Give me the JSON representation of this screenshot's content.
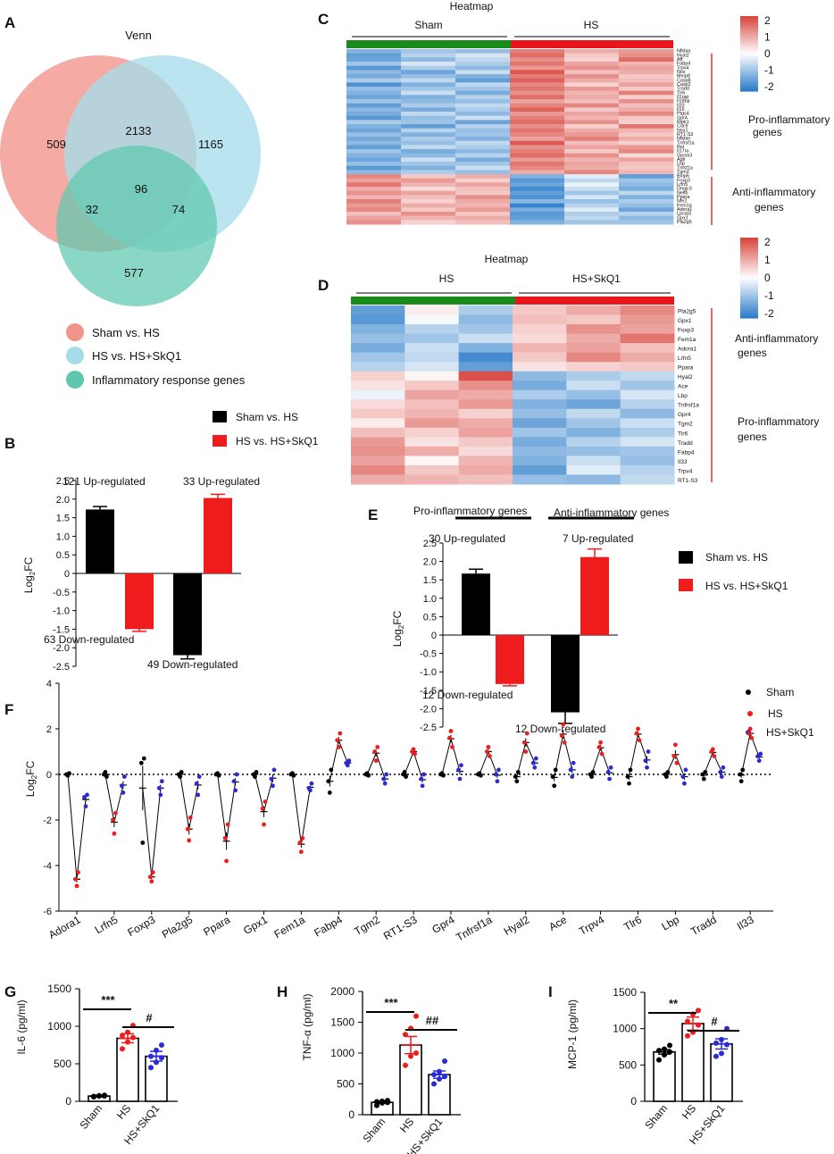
{
  "colors": {
    "sham": "#000000",
    "hs": "#ee1c1c",
    "skq": "#2b2bd6",
    "venn_sham": "#f2948a",
    "venn_hs": "#a6dcea",
    "venn_inf": "#5ec7ae",
    "heat_hi": "#d9473f",
    "heat_lo": "#2f7fca",
    "bar_green": "#1a8a1a",
    "bar_red": "#e8161b"
  },
  "panel_letters": {
    "A": "A",
    "B": "B",
    "C": "C",
    "D": "D",
    "E": "E",
    "F": "F",
    "G": "G",
    "H": "H",
    "I": "I"
  },
  "chart_data": [
    {
      "panel": "A",
      "type": "venn",
      "title": "Venn",
      "regions": {
        "sham_only": "509",
        "sham_hs": "2133",
        "hs_only": "1165",
        "center": "96",
        "sham_inf": "32",
        "hs_inf": "74",
        "inf_only": "577"
      },
      "legend": [
        "Sham vs. HS",
        "HS vs. HS+SkQ1",
        "Inflammatory response genes"
      ]
    },
    {
      "panel": "B",
      "type": "bar",
      "ylabel_main": "Log",
      "ylabel_sub": "2",
      "ylabel_tail": "FC",
      "ylim": [
        -2.5,
        2.5
      ],
      "yticks": [
        "2.5",
        "2.0",
        "1.5",
        "1.0",
        "0.5",
        "0",
        "-0.5",
        "-1.0",
        "-1.5",
        "-2.0",
        "-2.5"
      ],
      "legend": [
        "Sham vs. HS",
        "HS vs. HS+SkQ1"
      ],
      "bars": [
        {
          "series": "Sham vs. HS",
          "value": 1.72,
          "err": 0.08
        },
        {
          "series": "HS vs. HS+SkQ1",
          "value": -1.5,
          "err": 0.06
        },
        {
          "series": "Sham vs. HS",
          "value": -2.2,
          "err": 0.1
        },
        {
          "series": "HS vs. HS+SkQ1",
          "value": 2.03,
          "err": 0.1
        }
      ],
      "annotations": [
        "121 Up-regulated",
        "33 Up-regulated",
        "63 Down-regulated",
        "49 Down-regulated"
      ]
    },
    {
      "panel": "C",
      "type": "heatmap",
      "title": "Heatmap",
      "groups": [
        "Sham",
        "HS"
      ],
      "scale": [
        "2",
        "1",
        "0",
        "-1",
        "-2"
      ],
      "right_labels": [
        "Pro-inflammatory",
        "genes",
        "Anti-inflammatory",
        "genes"
      ],
      "rows": [
        "Nfkbia",
        "Hyal2",
        "Atf",
        "Fabp4",
        "Trpv4",
        "Nos",
        "Mmp8",
        "Casp8",
        "Casp2",
        "Tradd",
        "Tlr6",
        "Il1rap",
        "Il18bp",
        "Il33",
        "Il16",
        "Ptgs4",
        "Gpr4",
        "Ripk1",
        "Cdc9",
        "Nox1",
        "RT1-S3",
        "Nfkbie",
        "Tnfrsf1a",
        "Rel",
        "Il17ra",
        "Gpsm3",
        "Agtr",
        "Lbp",
        "Tnfsf1a",
        "Tgm2",
        "Bmp6",
        "Foxp3",
        "Lrfn5",
        "Dnajc3",
        "Nelfb",
        "Ppara",
        "Nfe2",
        "Fem1a",
        "Adora1",
        "Lpcat3",
        "Gpx1",
        "Pla2g5"
      ],
      "values": [
        [
          -1.2,
          -0.9,
          -1.0,
          1.4,
          0.9,
          1.1
        ],
        [
          -1.5,
          -0.7,
          -0.4,
          1.6,
          0.6,
          1.2
        ],
        [
          -1.4,
          -1.1,
          -0.6,
          1.2,
          0.5,
          1.6
        ],
        [
          -0.9,
          -0.4,
          -0.8,
          1.5,
          1.0,
          0.8
        ],
        [
          -1.6,
          -0.8,
          -1.1,
          1.1,
          1.2,
          1.0
        ],
        [
          -1.1,
          -1.4,
          -0.5,
          1.8,
          0.7,
          0.9
        ],
        [
          -1.3,
          -1.0,
          -1.2,
          1.4,
          1.2,
          0.6
        ],
        [
          -0.8,
          -0.6,
          -1.5,
          1.7,
          0.9,
          0.7
        ],
        [
          -1.7,
          -1.2,
          -0.6,
          1.3,
          0.5,
          1.0
        ],
        [
          -1.0,
          -0.9,
          -0.9,
          1.5,
          1.1,
          0.6
        ],
        [
          -1.2,
          -0.5,
          -1.3,
          1.2,
          0.8,
          1.4
        ],
        [
          -1.4,
          -1.2,
          -0.7,
          1.6,
          0.9,
          0.5
        ],
        [
          -0.9,
          -1.1,
          -1.0,
          1.0,
          0.7,
          1.2
        ],
        [
          -1.5,
          -0.8,
          -0.6,
          1.3,
          1.3,
          0.7
        ],
        [
          -1.1,
          -1.3,
          -0.8,
          1.7,
          0.6,
          0.9
        ],
        [
          -1.3,
          -0.6,
          -1.1,
          1.1,
          1.0,
          1.3
        ],
        [
          -1.6,
          -1.0,
          -0.5,
          1.4,
          0.8,
          0.6
        ],
        [
          -0.8,
          -0.9,
          -1.4,
          1.6,
          1.2,
          0.5
        ],
        [
          -1.2,
          -1.5,
          -0.7,
          1.2,
          0.5,
          1.5
        ],
        [
          -1.4,
          -0.7,
          -1.0,
          1.5,
          0.9,
          0.8
        ],
        [
          -1.0,
          -1.2,
          -0.9,
          1.3,
          1.1,
          0.6
        ],
        [
          -1.3,
          -0.8,
          -1.2,
          1.0,
          1.4,
          0.9
        ],
        [
          -1.1,
          -1.0,
          -0.6,
          1.8,
          0.7,
          0.5
        ],
        [
          -1.5,
          -0.6,
          -0.8,
          1.2,
          1.0,
          1.1
        ],
        [
          -0.9,
          -1.3,
          -1.1,
          1.4,
          0.6,
          1.3
        ],
        [
          -1.2,
          -1.1,
          -0.7,
          1.6,
          1.2,
          0.4
        ],
        [
          -1.4,
          -0.5,
          -1.3,
          1.1,
          0.8,
          1.0
        ],
        [
          -1.0,
          -0.9,
          -0.9,
          1.5,
          1.0,
          0.7
        ],
        [
          -1.6,
          -1.2,
          -0.5,
          1.3,
          0.9,
          0.6
        ],
        [
          -1.1,
          -0.8,
          -1.0,
          0.9,
          1.3,
          0.8
        ],
        [
          1.3,
          0.6,
          0.9,
          -1.2,
          -0.3,
          -1.5
        ],
        [
          1.0,
          1.1,
          0.5,
          -1.6,
          -0.6,
          -0.9
        ],
        [
          1.5,
          0.8,
          1.0,
          -1.4,
          -0.2,
          -1.1
        ],
        [
          0.9,
          0.4,
          0.7,
          -1.8,
          -0.5,
          -1.3
        ],
        [
          1.2,
          1.0,
          0.6,
          -1.5,
          -0.9,
          -0.6
        ],
        [
          0.8,
          0.7,
          1.2,
          -1.7,
          -0.4,
          -1.2
        ],
        [
          1.4,
          0.5,
          0.9,
          -1.1,
          -1.0,
          -0.8
        ],
        [
          1.1,
          0.9,
          0.8,
          -1.9,
          -0.7,
          -1.0
        ],
        [
          1.3,
          0.6,
          1.1,
          -1.3,
          -0.3,
          -1.4
        ],
        [
          0.7,
          1.2,
          0.6,
          -1.6,
          -0.8,
          -0.7
        ],
        [
          1.0,
          0.8,
          0.9,
          -1.5,
          -0.6,
          -1.1
        ],
        [
          1.2,
          0.5,
          0.7,
          -1.2,
          -0.9,
          -0.9
        ]
      ]
    },
    {
      "panel": "D",
      "type": "heatmap",
      "title": "Heatmap",
      "groups": [
        "HS",
        "HS+SkQ1"
      ],
      "scale": [
        "2",
        "1",
        "0",
        "-1",
        "-2"
      ],
      "right_labels": [
        "Anti-inflammatory",
        "genes",
        "Pro-inflammatory",
        "genes"
      ],
      "rows": [
        "Pla2g5",
        "Gpx1",
        "Foxp3",
        "Fem1a",
        "Adora1",
        "Lrfn5",
        "Ppara",
        "Hyal2",
        "Ace",
        "Lbp",
        "Tnfrsf1a",
        "Gpr4",
        "Tgm2",
        "Tlr6",
        "Tradd",
        "Fabp4",
        "Il33",
        "Trpv4",
        "RT1-S3"
      ],
      "values": [
        [
          -1.5,
          0.2,
          -0.8,
          0.6,
          0.9,
          1.3
        ],
        [
          -1.6,
          -0.1,
          -1.1,
          0.7,
          0.6,
          1.1
        ],
        [
          -1.2,
          -0.7,
          -0.9,
          0.5,
          1.2,
          1.0
        ],
        [
          -1.0,
          -0.9,
          -0.5,
          0.4,
          0.9,
          1.5
        ],
        [
          -1.3,
          -0.5,
          -1.2,
          0.8,
          1.0,
          0.7
        ],
        [
          -0.9,
          -0.6,
          -1.8,
          0.6,
          1.3,
          0.9
        ],
        [
          -0.7,
          -0.4,
          -1.5,
          0.3,
          0.5,
          0.6
        ],
        [
          0.5,
          0.1,
          1.9,
          -1.1,
          -0.8,
          -0.6
        ],
        [
          0.3,
          0.6,
          1.2,
          -1.3,
          -0.5,
          -0.9
        ],
        [
          -0.2,
          1.0,
          0.9,
          -0.8,
          -1.0,
          -0.4
        ],
        [
          0.4,
          0.7,
          1.1,
          -1.2,
          -1.4,
          -0.7
        ],
        [
          0.6,
          0.8,
          0.5,
          -1.0,
          -0.6,
          -1.1
        ],
        [
          0.2,
          1.1,
          0.9,
          -1.4,
          -0.9,
          -0.5
        ],
        [
          0.7,
          0.5,
          1.0,
          -0.9,
          -1.2,
          -0.8
        ],
        [
          1.1,
          0.3,
          0.6,
          -1.3,
          -0.7,
          -0.4
        ],
        [
          1.2,
          0.9,
          0.4,
          -1.1,
          -1.0,
          -0.9
        ],
        [
          1.0,
          0.1,
          0.8,
          -1.2,
          -0.5,
          -1.0
        ],
        [
          1.3,
          0.6,
          0.9,
          -1.5,
          -0.3,
          -0.7
        ],
        [
          0.9,
          0.8,
          0.7,
          -1.0,
          -1.1,
          -0.6
        ]
      ]
    },
    {
      "panel": "E",
      "type": "bar",
      "ylabel_main": "Log",
      "ylabel_sub": "2",
      "ylabel_tail": "FC",
      "ylim": [
        -2.5,
        2.5
      ],
      "yticks": [
        "2.5",
        "2.0",
        "1.5",
        "1.0",
        "0.5",
        "0",
        "-0.5",
        "-1.0",
        "-1.5",
        "-2.0",
        "-2.5"
      ],
      "legend": [
        "Sham vs. HS",
        "HS vs. HS+SkQ1"
      ],
      "group_labels": [
        "Pro-inflammatory genes",
        "Anti-inflammatory genes"
      ],
      "bars": [
        {
          "series": "Sham vs. HS",
          "value": 1.67,
          "err": 0.12
        },
        {
          "series": "HS vs. HS+SkQ1",
          "value": -1.33,
          "err": 0.05
        },
        {
          "series": "Sham vs. HS",
          "value": -2.1,
          "err": 0.3
        },
        {
          "series": "HS vs. HS+SkQ1",
          "value": 2.12,
          "err": 0.22
        }
      ],
      "annotations": [
        "30 Up-regulated",
        "7 Up-regulated",
        "12 Down-regulated",
        "12 Down-regulated"
      ]
    },
    {
      "panel": "F",
      "type": "scatter",
      "ylabel_main": "Log",
      "ylabel_sub": "2",
      "ylabel_tail": "FC",
      "ylim": [
        -6,
        4
      ],
      "yticks": [
        "4",
        "2",
        "0",
        "-2",
        "-4",
        "-6"
      ],
      "legend": [
        "Sham",
        "HS",
        "HS+SkQ1"
      ],
      "genes": [
        "Adora1",
        "Lrfn5",
        "Foxp3",
        "Pla2g5",
        "Ppara",
        "Gpx1",
        "Fem1a",
        "Fabp4",
        "Tgm2",
        "RT1-S3",
        "Gpr4",
        "Tnfrsf1a",
        "Hyal2",
        "Ace",
        "Trpv4",
        "Tlr6",
        "Lbp",
        "Tradd",
        "Il33"
      ],
      "points": [
        [
          [
            0,
            -0.05,
            0.05
          ],
          [
            -4.6,
            -4.9,
            -4.3
          ],
          [
            -1.0,
            -1.4,
            -0.9
          ]
        ],
        [
          [
            0,
            0.1,
            -0.1
          ],
          [
            -2.0,
            -2.6,
            -1.7
          ],
          [
            -0.5,
            -0.8,
            -0.1
          ]
        ],
        [
          [
            0.5,
            -3.0,
            0.7
          ],
          [
            -4.5,
            -4.7,
            -4.3
          ],
          [
            -0.6,
            -0.9,
            -0.3
          ]
        ],
        [
          [
            0,
            -0.1,
            0.1
          ],
          [
            -2.4,
            -2.9,
            -1.9
          ],
          [
            -0.4,
            -0.9,
            -0.1
          ]
        ],
        [
          [
            0,
            0.05,
            -0.05
          ],
          [
            -2.8,
            -3.8,
            -2.2
          ],
          [
            -0.3,
            -0.7,
            0
          ]
        ],
        [
          [
            0,
            -0.1,
            0.1
          ],
          [
            -1.5,
            -2.2,
            -1.2
          ],
          [
            -0.2,
            -0.5,
            0.2
          ]
        ],
        [
          [
            0,
            0.05,
            -0.05
          ],
          [
            -3.0,
            -3.4,
            -2.8
          ],
          [
            -0.6,
            -0.7,
            -0.4
          ]
        ],
        [
          [
            -0.3,
            -0.8,
            0.2
          ],
          [
            1.5,
            1.2,
            1.8
          ],
          [
            0.5,
            0.4,
            0.6
          ]
        ],
        [
          [
            0,
            0.05,
            -0.05
          ],
          [
            1.0,
            0.6,
            1.2
          ],
          [
            -0.2,
            -0.4,
            0
          ]
        ],
        [
          [
            0,
            0.1,
            -0.1
          ],
          [
            1.0,
            1.1,
            0.9
          ],
          [
            -0.2,
            -0.5,
            0
          ]
        ],
        [
          [
            0,
            0.05,
            -0.05
          ],
          [
            1.6,
            1.9,
            1.2
          ],
          [
            0.2,
            -0.2,
            0.4
          ]
        ],
        [
          [
            0,
            0.05,
            -0.05
          ],
          [
            1.0,
            1.2,
            0.8
          ],
          [
            0,
            -0.3,
            0.2
          ]
        ],
        [
          [
            -0.1,
            -0.3,
            0.1
          ],
          [
            1.4,
            1.0,
            1.8
          ],
          [
            0.5,
            0.3,
            0.7
          ]
        ],
        [
          [
            -0.1,
            -0.5,
            0.2
          ],
          [
            1.7,
            2.2,
            1.4
          ],
          [
            0.2,
            -0.1,
            0.5
          ]
        ],
        [
          [
            0,
            -0.1,
            0.1
          ],
          [
            1.2,
            1.4,
            0.9
          ],
          [
            0.1,
            -0.2,
            0.3
          ]
        ],
        [
          [
            -0.1,
            -0.4,
            0.2
          ],
          [
            1.8,
            2.0,
            1.5
          ],
          [
            0.6,
            0.3,
            1.0
          ]
        ],
        [
          [
            0,
            -0.1,
            0.1
          ],
          [
            0.8,
            1.3,
            0.5
          ],
          [
            -0.1,
            -0.4,
            0.2
          ]
        ],
        [
          [
            0,
            -0.2,
            0.1
          ],
          [
            1.0,
            1.1,
            0.8
          ],
          [
            0.1,
            -0.1,
            0.3
          ]
        ],
        [
          [
            0,
            -0.3,
            0.2
          ],
          [
            1.8,
            2.0,
            1.6
          ],
          [
            0.8,
            0.6,
            0.9
          ]
        ]
      ]
    },
    {
      "panel": "G",
      "type": "bar",
      "ylabel": "IL-6 (pg/ml)",
      "ylim": [
        0,
        1500
      ],
      "yticks": [
        "1500",
        "1000",
        "500",
        "0"
      ],
      "categories": [
        "Sham",
        "HS",
        "HS+SkQ1"
      ],
      "values": [
        70,
        840,
        600
      ],
      "errors": [
        10,
        60,
        65
      ],
      "points": [
        [
          60,
          70,
          80,
          65,
          75,
          72
        ],
        [
          700,
          790,
          850,
          880,
          920,
          1010
        ],
        [
          450,
          520,
          580,
          600,
          680,
          750
        ]
      ],
      "significance": [
        "***",
        "#"
      ]
    },
    {
      "panel": "H",
      "type": "bar",
      "ylabel": "TNF-α (pg/ml)",
      "ylim": [
        0,
        2000
      ],
      "yticks": [
        "2000",
        "1500",
        "1000",
        "500",
        "0"
      ],
      "categories": [
        "Sham",
        "HS",
        "HS+SkQ1"
      ],
      "values": [
        200,
        1130,
        650
      ],
      "errors": [
        15,
        140,
        60
      ],
      "points": [
        [
          150,
          190,
          200,
          210,
          220,
          230
        ],
        [
          800,
          950,
          1000,
          1300,
          1400,
          1600
        ],
        [
          500,
          580,
          620,
          650,
          700,
          870
        ]
      ],
      "significance": [
        "***",
        "##"
      ]
    },
    {
      "panel": "I",
      "type": "bar",
      "ylabel": "MCP-1 (pg/ml)",
      "ylim": [
        0,
        1500
      ],
      "yticks": [
        "1500",
        "1000",
        "500",
        "0"
      ],
      "categories": [
        "Sham",
        "HS",
        "HS+SkQ1"
      ],
      "values": [
        680,
        1070,
        790
      ],
      "errors": [
        30,
        90,
        70
      ],
      "points": [
        [
          570,
          640,
          680,
          700,
          720,
          770
        ],
        [
          900,
          950,
          1050,
          1100,
          1200,
          1250
        ],
        [
          620,
          660,
          780,
          800,
          850,
          1000
        ]
      ],
      "significance": [
        "**",
        "#"
      ]
    }
  ]
}
